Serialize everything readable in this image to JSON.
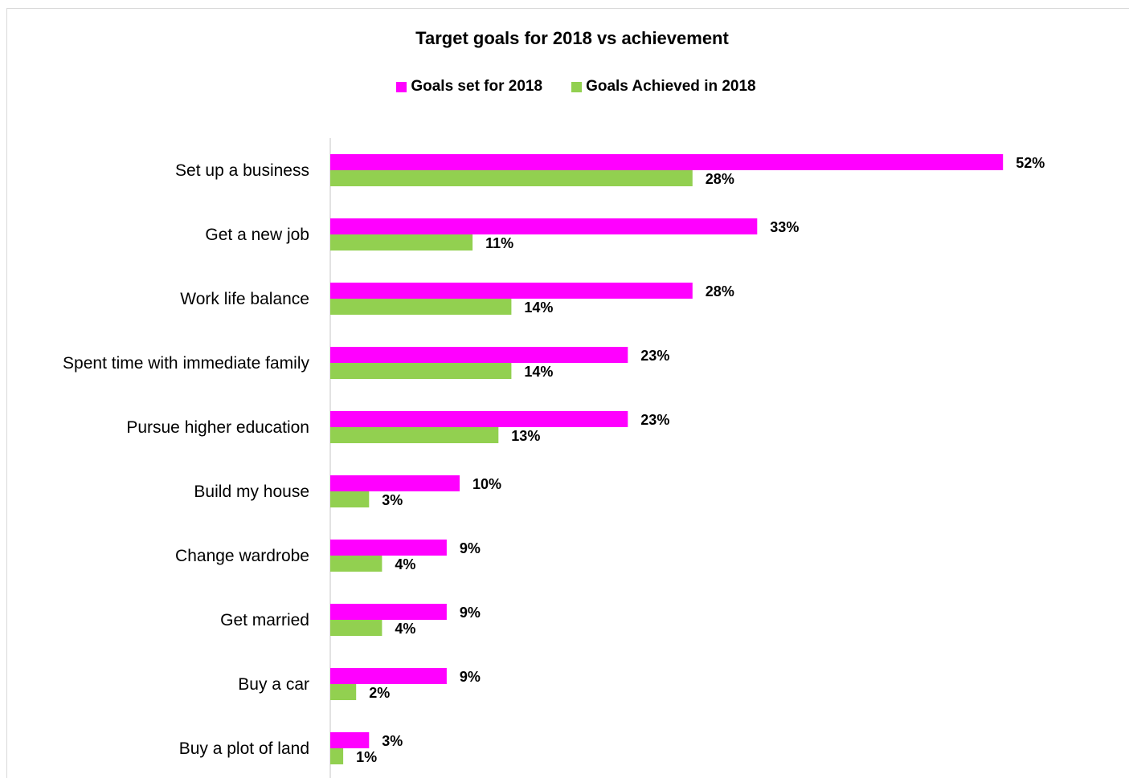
{
  "chart_data": {
    "type": "bar",
    "orientation": "horizontal",
    "title": "Target goals for 2018 vs achievement",
    "categories": [
      "Set up a business",
      "Get a new job",
      "Work life balance",
      "Spent time with immediate family",
      "Pursue higher education",
      "Build my house",
      "Change wardrobe",
      "Get married",
      "Buy a car",
      "Buy a plot of land"
    ],
    "series": [
      {
        "name": "Goals set for 2018",
        "color": "#ff00ff",
        "values": [
          52,
          33,
          28,
          23,
          23,
          10,
          9,
          9,
          9,
          3
        ],
        "labels": [
          "52%",
          "33%",
          "28%",
          "23%",
          "23%",
          "10%",
          "9%",
          "9%",
          "9%",
          "3%"
        ]
      },
      {
        "name": "Goals Achieved in 2018",
        "color": "#92d050",
        "values": [
          28,
          11,
          14,
          14,
          13,
          3,
          4,
          4,
          2,
          1
        ],
        "labels": [
          "28%",
          "11%",
          "14%",
          "14%",
          "13%",
          "3%",
          "4%",
          "4%",
          "2%",
          "1%"
        ]
      }
    ],
    "value_unit": "%",
    "xlim": [
      0,
      55
    ],
    "legend_position": "top",
    "grid": false,
    "axis_color": "#d9d9d9"
  }
}
